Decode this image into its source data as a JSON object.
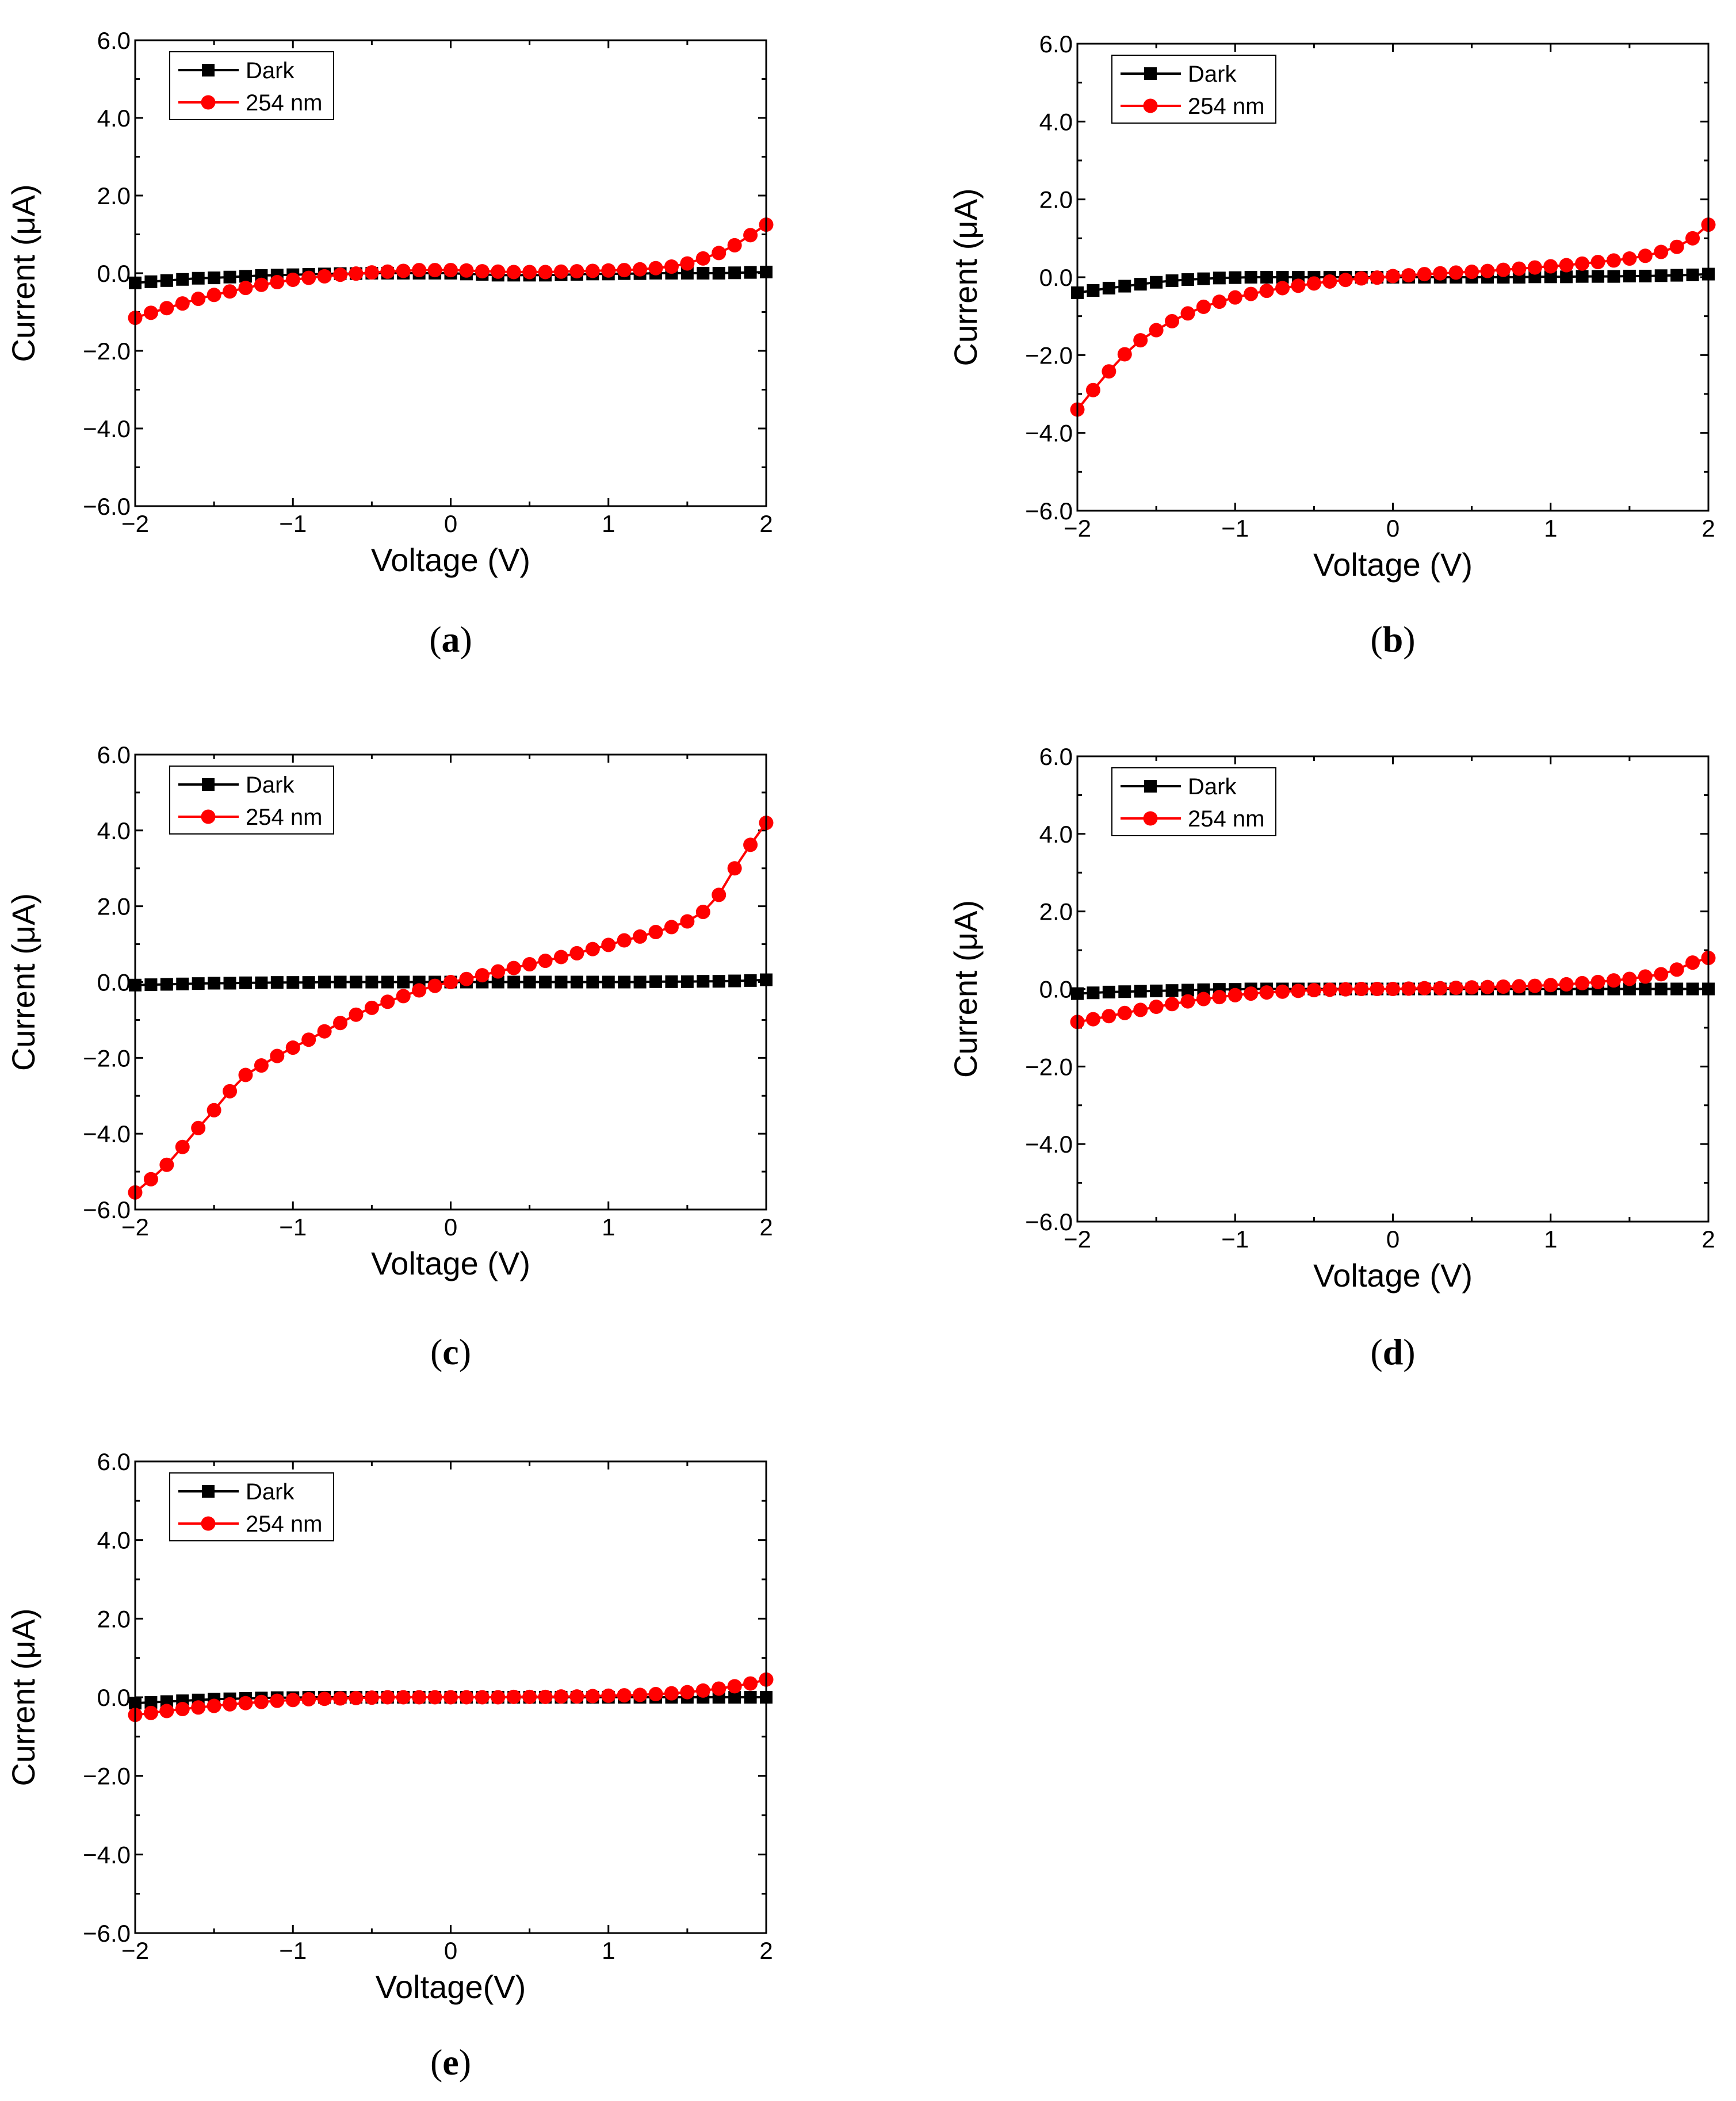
{
  "figure": {
    "panels": [
      "(a)",
      "(b)",
      "(c)",
      "(d)",
      "(e)"
    ]
  },
  "colors": {
    "dark": "#000000",
    "uv": "#ff0000",
    "axis": "#000000"
  },
  "chart_data": [
    {
      "panel": "a",
      "type": "line",
      "xlabel": "Voltage (V)",
      "ylabel": "Current (μA)",
      "xlim": [
        -2,
        2
      ],
      "ylim": [
        -6,
        6
      ],
      "xticks": [
        "−2",
        "−1",
        "0",
        "1",
        "2"
      ],
      "yticks": [
        "−6.0",
        "−4.0",
        "−2.0",
        "0.0",
        "2.0",
        "4.0",
        "6.0"
      ],
      "legend": [
        "Dark",
        "254 nm"
      ],
      "legend_position": "top-left",
      "series": [
        {
          "name": "Dark",
          "marker": "square",
          "x_start": -2,
          "x_step": 0.1,
          "values": [
            -0.25,
            -0.22,
            -0.19,
            -0.16,
            -0.13,
            -0.12,
            -0.1,
            -0.08,
            -0.06,
            -0.05,
            -0.04,
            -0.03,
            -0.02,
            -0.01,
            -0.01,
            0.0,
            0.0,
            0.0,
            0.0,
            0.0,
            0.0,
            -0.02,
            -0.03,
            -0.05,
            -0.05,
            -0.05,
            -0.05,
            -0.04,
            -0.03,
            -0.02,
            -0.02,
            -0.01,
            -0.01,
            0.0,
            0.0,
            0.0,
            0.0,
            0.0,
            0.01,
            0.02,
            0.03
          ]
        },
        {
          "name": "254 nm",
          "marker": "circle",
          "x_start": -2,
          "x_step": 0.1,
          "values": [
            -1.15,
            -1.02,
            -0.9,
            -0.78,
            -0.66,
            -0.56,
            -0.47,
            -0.38,
            -0.3,
            -0.23,
            -0.17,
            -0.12,
            -0.08,
            -0.04,
            -0.01,
            0.02,
            0.04,
            0.06,
            0.08,
            0.08,
            0.08,
            0.07,
            0.05,
            0.04,
            0.03,
            0.03,
            0.03,
            0.04,
            0.05,
            0.06,
            0.07,
            0.08,
            0.1,
            0.13,
            0.17,
            0.25,
            0.38,
            0.52,
            0.72,
            0.98,
            1.25
          ]
        }
      ]
    },
    {
      "panel": "b",
      "type": "line",
      "xlabel": "Voltage (V)",
      "ylabel": "Current (μA)",
      "xlim": [
        -2,
        2
      ],
      "ylim": [
        -6,
        6
      ],
      "xticks": [
        "−2",
        "−1",
        "0",
        "1",
        "2"
      ],
      "yticks": [
        "−6.0",
        "−4.0",
        "−2.0",
        "0.0",
        "2.0",
        "4.0",
        "6.0"
      ],
      "legend": [
        "Dark",
        "254 nm"
      ],
      "legend_position": "top-left",
      "series": [
        {
          "name": "Dark",
          "marker": "square",
          "x_start": -2,
          "x_step": 0.1,
          "values": [
            -0.4,
            -0.34,
            -0.28,
            -0.23,
            -0.18,
            -0.13,
            -0.09,
            -0.06,
            -0.04,
            -0.02,
            -0.01,
            0.0,
            0.0,
            0.0,
            0.0,
            0.0,
            0.0,
            0.0,
            0.0,
            0.0,
            0.0,
            0.0,
            0.0,
            0.0,
            0.0,
            0.0,
            0.0,
            0.0,
            0.0,
            0.01,
            0.01,
            0.01,
            0.02,
            0.02,
            0.02,
            0.03,
            0.03,
            0.04,
            0.05,
            0.06,
            0.08
          ]
        },
        {
          "name": "254 nm",
          "marker": "circle",
          "x_start": -2,
          "x_step": 0.1,
          "values": [
            -3.4,
            -2.9,
            -2.42,
            -1.98,
            -1.62,
            -1.36,
            -1.13,
            -0.93,
            -0.76,
            -0.63,
            -0.52,
            -0.43,
            -0.35,
            -0.28,
            -0.22,
            -0.16,
            -0.11,
            -0.07,
            -0.03,
            -0.01,
            0.03,
            0.05,
            0.08,
            0.1,
            0.12,
            0.14,
            0.16,
            0.19,
            0.22,
            0.25,
            0.28,
            0.31,
            0.35,
            0.39,
            0.43,
            0.48,
            0.55,
            0.65,
            0.78,
            1.0,
            1.35
          ]
        }
      ]
    },
    {
      "panel": "c",
      "type": "line",
      "xlabel": "Voltage (V)",
      "ylabel": "Current (μA)",
      "xlim": [
        -2,
        2
      ],
      "ylim": [
        -6,
        6
      ],
      "xticks": [
        "−2",
        "−1",
        "0",
        "1",
        "2"
      ],
      "yticks": [
        "−6.0",
        "−4.0",
        "−2.0",
        "0.0",
        "2.0",
        "4.0",
        "6.0"
      ],
      "legend": [
        "Dark",
        "254 nm"
      ],
      "legend_position": "top-left",
      "series": [
        {
          "name": "Dark",
          "marker": "square",
          "x_start": -2,
          "x_step": 0.1,
          "values": [
            -0.08,
            -0.07,
            -0.06,
            -0.05,
            -0.04,
            -0.03,
            -0.03,
            -0.02,
            -0.02,
            -0.01,
            -0.01,
            -0.01,
            0.0,
            0.0,
            0.0,
            0.0,
            0.0,
            0.0,
            0.0,
            0.0,
            0.0,
            0.0,
            0.0,
            0.0,
            0.0,
            0.0,
            0.0,
            0.0,
            0.0,
            0.0,
            0.0,
            0.0,
            0.0,
            0.01,
            0.01,
            0.01,
            0.02,
            0.02,
            0.03,
            0.04,
            0.06
          ]
        },
        {
          "name": "254 nm",
          "marker": "circle",
          "x_start": -2,
          "x_step": 0.1,
          "values": [
            -5.55,
            -5.2,
            -4.82,
            -4.35,
            -3.85,
            -3.38,
            -2.88,
            -2.45,
            -2.2,
            -1.95,
            -1.73,
            -1.52,
            -1.3,
            -1.08,
            -0.86,
            -0.68,
            -0.52,
            -0.37,
            -0.22,
            -0.1,
            0.0,
            0.08,
            0.18,
            0.28,
            0.37,
            0.47,
            0.56,
            0.66,
            0.76,
            0.87,
            0.98,
            1.1,
            1.2,
            1.32,
            1.45,
            1.6,
            1.85,
            2.3,
            3.0,
            3.62,
            4.2
          ]
        }
      ]
    },
    {
      "panel": "d",
      "type": "line",
      "xlabel": "Voltage (V)",
      "ylabel": "Current (μA)",
      "xlim": [
        -2,
        2
      ],
      "ylim": [
        -6,
        6
      ],
      "xticks": [
        "−2",
        "−1",
        "0",
        "1",
        "2"
      ],
      "yticks": [
        "−6.0",
        "−4.0",
        "−2.0",
        "0.0",
        "2.0",
        "4.0",
        "6.0"
      ],
      "legend": [
        "Dark",
        "254 nm"
      ],
      "legend_position": "top-left",
      "series": [
        {
          "name": "Dark",
          "marker": "square",
          "x_start": -2,
          "x_step": 0.1,
          "values": [
            -0.12,
            -0.1,
            -0.08,
            -0.07,
            -0.06,
            -0.05,
            -0.04,
            -0.03,
            -0.02,
            -0.01,
            -0.01,
            0.0,
            0.0,
            0.0,
            0.0,
            0.0,
            0.0,
            0.0,
            0.0,
            0.0,
            0.0,
            0.0,
            0.0,
            0.0,
            0.0,
            0.0,
            0.0,
            0.0,
            0.0,
            0.0,
            0.0,
            0.0,
            0.0,
            0.0,
            0.0,
            0.0,
            0.0,
            0.0,
            0.0,
            0.0,
            0.0
          ]
        },
        {
          "name": "254 nm",
          "marker": "circle",
          "x_start": -2,
          "x_step": 0.1,
          "values": [
            -0.85,
            -0.78,
            -0.7,
            -0.62,
            -0.54,
            -0.46,
            -0.39,
            -0.32,
            -0.26,
            -0.21,
            -0.16,
            -0.12,
            -0.09,
            -0.07,
            -0.05,
            -0.03,
            -0.02,
            -0.01,
            0.0,
            0.0,
            0.0,
            0.01,
            0.02,
            0.02,
            0.03,
            0.04,
            0.05,
            0.06,
            0.07,
            0.08,
            0.1,
            0.12,
            0.15,
            0.18,
            0.22,
            0.26,
            0.32,
            0.38,
            0.5,
            0.68,
            0.8
          ]
        }
      ]
    },
    {
      "panel": "e",
      "type": "line",
      "xlabel": "Voltage(V)",
      "ylabel": "Current (μA)",
      "xlim": [
        -2,
        2
      ],
      "ylim": [
        -6,
        6
      ],
      "xticks": [
        "−2",
        "−1",
        "0",
        "1",
        "2"
      ],
      "yticks": [
        "−6.0",
        "−4.0",
        "−2.0",
        "0.0",
        "2.0",
        "4.0",
        "6.0"
      ],
      "legend": [
        "Dark",
        "254 nm"
      ],
      "legend_position": "top-left",
      "series": [
        {
          "name": "Dark",
          "marker": "square",
          "x_start": -2,
          "x_step": 0.1,
          "values": [
            -0.15,
            -0.13,
            -0.11,
            -0.09,
            -0.07,
            -0.05,
            -0.04,
            -0.03,
            -0.02,
            -0.01,
            -0.01,
            0.0,
            0.0,
            0.0,
            0.0,
            0.0,
            0.0,
            0.0,
            0.0,
            0.0,
            0.0,
            0.0,
            0.0,
            0.0,
            0.0,
            0.0,
            0.0,
            0.0,
            0.0,
            0.0,
            0.0,
            0.0,
            0.0,
            0.0,
            0.0,
            0.0,
            0.0,
            0.0,
            0.0,
            0.0,
            0.0
          ]
        },
        {
          "name": "254 nm",
          "marker": "circle",
          "x_start": -2,
          "x_step": 0.1,
          "values": [
            -0.45,
            -0.4,
            -0.35,
            -0.3,
            -0.26,
            -0.22,
            -0.18,
            -0.15,
            -0.12,
            -0.09,
            -0.07,
            -0.05,
            -0.04,
            -0.03,
            -0.02,
            -0.01,
            0.0,
            0.0,
            0.0,
            0.0,
            0.0,
            0.0,
            0.0,
            0.0,
            0.01,
            0.01,
            0.01,
            0.02,
            0.02,
            0.03,
            0.04,
            0.05,
            0.06,
            0.08,
            0.1,
            0.13,
            0.17,
            0.22,
            0.28,
            0.35,
            0.45
          ]
        }
      ]
    }
  ]
}
